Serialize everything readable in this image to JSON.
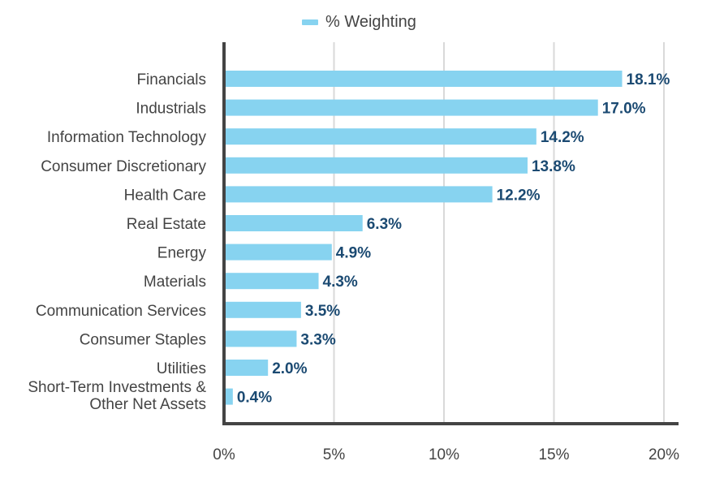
{
  "chart_data": {
    "type": "bar",
    "orientation": "horizontal",
    "categories": [
      [
        "Financials"
      ],
      [
        "Industrials"
      ],
      [
        "Information Technology"
      ],
      [
        "Consumer Discretionary"
      ],
      [
        "Health Care"
      ],
      [
        "Real Estate"
      ],
      [
        "Energy"
      ],
      [
        "Materials"
      ],
      [
        "Communication Services"
      ],
      [
        "Consumer Staples"
      ],
      [
        "Utilities"
      ],
      [
        "Short-Term Investments &",
        "Other Net Assets"
      ]
    ],
    "series": [
      {
        "name": "% Weighting",
        "values": [
          18.1,
          17.0,
          14.2,
          13.8,
          12.2,
          6.3,
          4.9,
          4.3,
          3.5,
          3.3,
          2.0,
          0.4
        ],
        "labels": [
          "18.1%",
          "17.0%",
          "14.2%",
          "13.8%",
          "12.2%",
          "6.3%",
          "4.9%",
          "4.3%",
          "3.5%",
          "3.3%",
          "2.0%",
          "0.4%"
        ],
        "color": "#87d3f0"
      }
    ],
    "xlim": [
      0,
      20
    ],
    "xticks": [
      0,
      5,
      10,
      15,
      20
    ],
    "xtick_labels": [
      "0%",
      "5%",
      "10%",
      "15%",
      "20%"
    ],
    "grid": "vertical",
    "legend_position": "top-center",
    "colors": {
      "bar": "#87d3f0",
      "data_label": "#1b4a72",
      "axis": "#444444",
      "grid": "#d9d9d9",
      "text": "#444444"
    }
  },
  "legend": {
    "label": "% Weighting"
  }
}
